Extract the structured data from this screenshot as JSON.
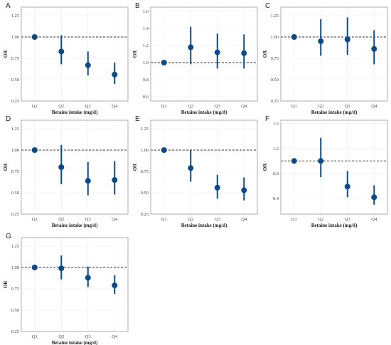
{
  "figure": {
    "colors": {
      "point": "#0b4a86",
      "ref_line": "#333333",
      "grid": "#ebebeb"
    }
  },
  "chart_data": [
    {
      "panel": "A",
      "type": "scatter",
      "categories": [
        "Q1",
        "Q2",
        "Q3",
        "Q4"
      ],
      "or": [
        1.0,
        0.83,
        0.67,
        0.56
      ],
      "lower": [
        1.0,
        0.68,
        0.55,
        0.45
      ],
      "upper": [
        1.0,
        1.02,
        0.83,
        0.7
      ],
      "reference": 1.0,
      "ylim": [
        0.25,
        1.35
      ],
      "yticks": [
        "0.25",
        "0.50",
        "0.75",
        "1.00",
        "1.25"
      ],
      "ytick_values": [
        0.25,
        0.5,
        0.75,
        1.0,
        1.25
      ],
      "xlabel": "Betaine intake (mg/d)",
      "ylabel": "OR",
      "grid": true
    },
    {
      "panel": "B",
      "type": "scatter",
      "categories": [
        "Q1",
        "Q2",
        "Q3",
        "Q4"
      ],
      "or": [
        1.0,
        1.18,
        1.12,
        1.11
      ],
      "lower": [
        1.0,
        0.98,
        0.93,
        0.93
      ],
      "upper": [
        1.0,
        1.42,
        1.34,
        1.33
      ],
      "reference": 1.0,
      "ylim": [
        0.55,
        1.65
      ],
      "yticks": [
        "0.6",
        "0.8",
        "1.0",
        "1.2",
        "1.4",
        "1.6"
      ],
      "ytick_values": [
        0.6,
        0.8,
        1.0,
        1.2,
        1.4,
        1.6
      ],
      "xlabel": "Betaine intake (mg/d)",
      "ylabel": "OR",
      "grid": true
    },
    {
      "panel": "C",
      "type": "scatter",
      "categories": [
        "Q1",
        "Q2",
        "Q3",
        "Q4"
      ],
      "or": [
        1.0,
        0.95,
        0.97,
        0.86
      ],
      "lower": [
        1.0,
        0.78,
        0.79,
        0.68
      ],
      "upper": [
        1.0,
        1.21,
        1.23,
        1.08
      ],
      "reference": 1.0,
      "ylim": [
        0.25,
        1.35
      ],
      "yticks": [
        "0.25",
        "0.50",
        "0.75",
        "1.00",
        "1.25"
      ],
      "ytick_values": [
        0.25,
        0.5,
        0.75,
        1.0,
        1.25
      ],
      "xlabel": "Betaine intake (mg/d)",
      "ylabel": "OR",
      "grid": true
    },
    {
      "panel": "D",
      "type": "scatter",
      "categories": [
        "Q1",
        "Q2",
        "Q3",
        "Q4"
      ],
      "or": [
        1.0,
        0.8,
        0.64,
        0.65
      ],
      "lower": [
        1.0,
        0.6,
        0.47,
        0.48
      ],
      "upper": [
        1.0,
        1.06,
        0.86,
        0.87
      ],
      "reference": 1.0,
      "ylim": [
        0.25,
        1.35
      ],
      "yticks": [
        "0.25",
        "0.50",
        "0.75",
        "1.00",
        "1.25"
      ],
      "ytick_values": [
        0.25,
        0.5,
        0.75,
        1.0,
        1.25
      ],
      "xlabel": "Betaine intake (mg/d)",
      "ylabel": "OR",
      "grid": true
    },
    {
      "panel": "E",
      "type": "scatter",
      "categories": [
        "Q1",
        "Q2",
        "Q3",
        "Q4"
      ],
      "or": [
        1.0,
        0.79,
        0.56,
        0.53
      ],
      "lower": [
        1.0,
        0.63,
        0.43,
        0.41
      ],
      "upper": [
        1.0,
        1.0,
        0.71,
        0.68
      ],
      "reference": 1.0,
      "ylim": [
        0.25,
        1.35
      ],
      "yticks": [
        "0.25",
        "0.50",
        "0.75",
        "1.00",
        "1.25"
      ],
      "ytick_values": [
        0.25,
        0.5,
        0.75,
        1.0,
        1.25
      ],
      "xlabel": "Betaine intake (mg/d)",
      "ylabel": "OR",
      "grid": true
    },
    {
      "panel": "F",
      "type": "scatter",
      "categories": [
        "Q1",
        "Q2",
        "Q3",
        "Q4"
      ],
      "or": [
        1.0,
        1.0,
        0.59,
        0.42
      ],
      "lower": [
        1.0,
        0.74,
        0.42,
        0.3
      ],
      "upper": [
        1.0,
        1.37,
        0.84,
        0.61
      ],
      "reference": 1.0,
      "ylim": [
        0.15,
        1.65
      ],
      "yticks": [
        "0.4",
        "0.8",
        "1.2",
        "1.6"
      ],
      "ytick_values": [
        0.4,
        0.8,
        1.2,
        1.6
      ],
      "xlabel": "Betaine intake (mg/d)",
      "ylabel": "OR",
      "grid": true
    },
    {
      "panel": "G",
      "type": "scatter",
      "categories": [
        "Q1",
        "Q2",
        "Q3",
        "Q4"
      ],
      "or": [
        1.0,
        0.99,
        0.88,
        0.79
      ],
      "lower": [
        1.0,
        0.86,
        0.77,
        0.69
      ],
      "upper": [
        1.0,
        1.14,
        1.01,
        0.91
      ],
      "reference": 1.0,
      "ylim": [
        0.25,
        1.35
      ],
      "yticks": [
        "0.25",
        "0.50",
        "0.75",
        "1.00",
        "1.25"
      ],
      "ytick_values": [
        0.25,
        0.5,
        0.75,
        1.0,
        1.25
      ],
      "xlabel": "Betaine intake (mg/d)",
      "ylabel": "OR",
      "grid": true
    }
  ]
}
